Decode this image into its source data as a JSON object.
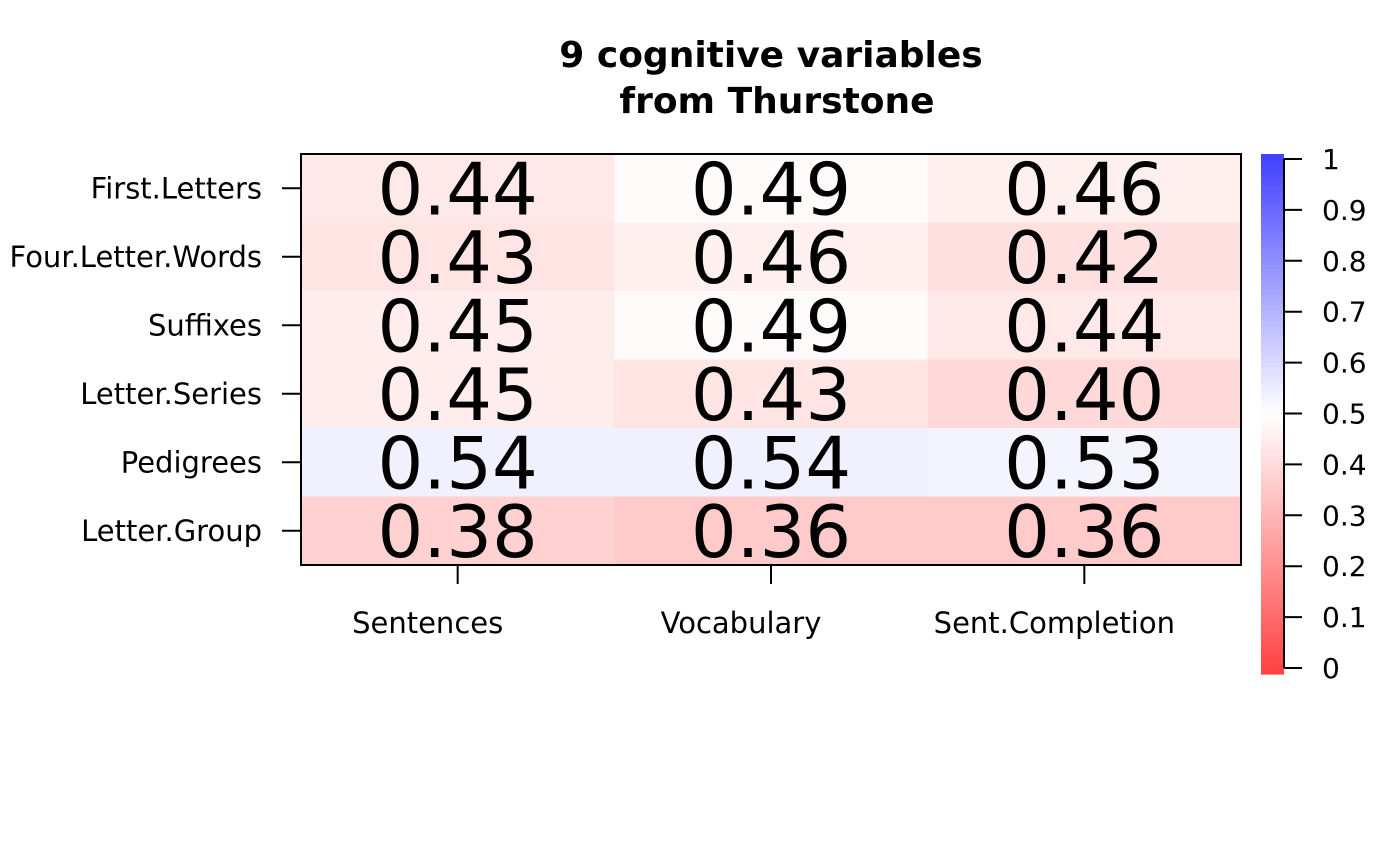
{
  "chart_data": {
    "type": "heatmap",
    "title": [
      "9 cognitive variables",
      "from Thurstone"
    ],
    "row_labels": [
      "First.Letters",
      "Four.Letter.Words",
      "Suffixes",
      "Letter.Series",
      "Pedigrees",
      "Letter.Group"
    ],
    "col_labels": [
      "Sentences",
      "Vocabulary",
      "Sent.Completion"
    ],
    "values": [
      [
        0.44,
        0.49,
        0.46
      ],
      [
        0.43,
        0.46,
        0.42
      ],
      [
        0.45,
        0.49,
        0.44
      ],
      [
        0.45,
        0.43,
        0.4
      ],
      [
        0.54,
        0.54,
        0.53
      ],
      [
        0.38,
        0.36,
        0.36
      ]
    ],
    "value_labels": [
      [
        "0.44",
        "0.49",
        "0.46"
      ],
      [
        "0.43",
        "0.46",
        "0.42"
      ],
      [
        "0.45",
        "0.49",
        "0.44"
      ],
      [
        "0.45",
        "0.43",
        "0.40"
      ],
      [
        "0.54",
        "0.54",
        "0.53"
      ],
      [
        "0.38",
        "0.36",
        "0.36"
      ]
    ],
    "color_scale": {
      "range": [
        0,
        1
      ],
      "low_color": "#ff4040",
      "mid_color": "#ffffff",
      "high_color": "#4040ff",
      "ticks": [
        "0",
        "0.1",
        "0.2",
        "0.3",
        "0.4",
        "0.5",
        "0.6",
        "0.7",
        "0.8",
        "0.9",
        "1"
      ]
    }
  }
}
